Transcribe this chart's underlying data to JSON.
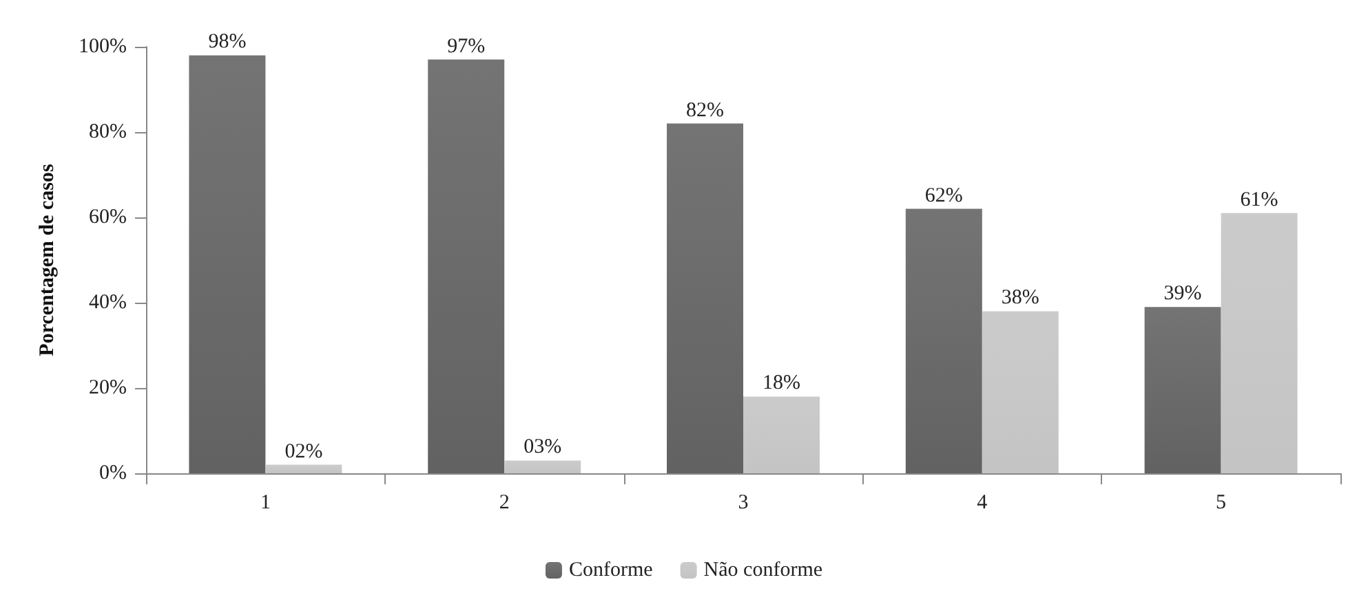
{
  "chart_data": {
    "type": "bar",
    "ylabel": "Porcentagem de casos",
    "categories": [
      "1",
      "2",
      "3",
      "4",
      "5"
    ],
    "series": [
      {
        "name": "Conforme",
        "color": "#626262",
        "values": [
          98,
          97,
          82,
          62,
          39
        ],
        "value_labels": [
          "98%",
          "97%",
          "82%",
          "62%",
          "39%"
        ]
      },
      {
        "name": "Não conforme",
        "color": "#c4c4c4",
        "values": [
          2,
          3,
          18,
          38,
          61
        ],
        "value_labels": [
          "02%",
          "03%",
          "18%",
          "38%",
          "61%"
        ]
      }
    ],
    "ylim": [
      0,
      100
    ],
    "yticks": [
      {
        "value": 0,
        "label": "0%"
      },
      {
        "value": 20,
        "label": "20%"
      },
      {
        "value": 40,
        "label": "40%"
      },
      {
        "value": 60,
        "label": "60%"
      },
      {
        "value": 80,
        "label": "80%"
      },
      {
        "value": 100,
        "label": "100%"
      }
    ],
    "grid": false,
    "legend": "bottom"
  }
}
